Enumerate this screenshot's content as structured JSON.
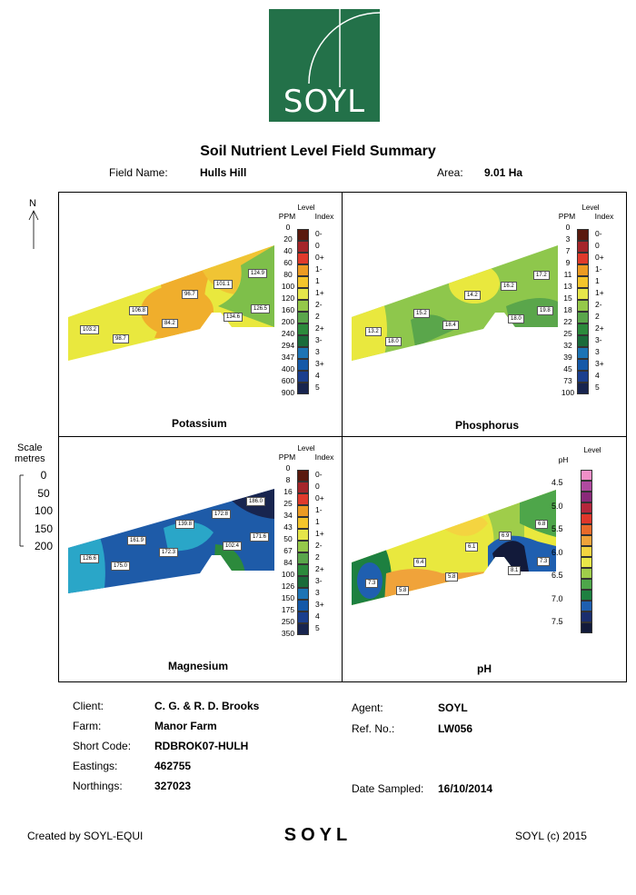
{
  "logo": {
    "text": "SOYL",
    "bg": "#237149"
  },
  "title": "Soil Nutrient Level Field Summary",
  "field": {
    "name_label": "Field Name:",
    "name": "Hulls Hill",
    "area_label": "Area:",
    "area": "9.01 Ha"
  },
  "north": "N",
  "scale": {
    "label1": "Scale",
    "label2": "metres",
    "ticks": [
      "0",
      "50",
      "100",
      "150",
      "200"
    ]
  },
  "panels": {
    "potassium": {
      "name": "Potassium",
      "level_label": "Level",
      "ppm_label": "PPM",
      "index_label": "Index",
      "ppm": [
        "0",
        "20",
        "40",
        "60",
        "80",
        "100",
        "120",
        "160",
        "200",
        "240",
        "294",
        "347",
        "400",
        "600",
        "900"
      ],
      "index": [
        "0-",
        "0",
        "0+",
        "1-",
        "1",
        "1+",
        "2-",
        "2",
        "2+",
        "3-",
        "3",
        "3+",
        "4",
        "5"
      ],
      "values": [
        "103.2",
        "106.8",
        "98.7",
        "84.2",
        "96.7",
        "101.1",
        "124.9",
        "134.6",
        "126.5"
      ]
    },
    "phosphorus": {
      "name": "Phosphorus",
      "level_label": "Level",
      "ppm_label": "PPM",
      "index_label": "Index",
      "ppm": [
        "0",
        "3",
        "7",
        "9",
        "11",
        "13",
        "15",
        "18",
        "22",
        "25",
        "32",
        "39",
        "45",
        "73",
        "100"
      ],
      "index": [
        "0-",
        "0",
        "0+",
        "1-",
        "1",
        "1+",
        "2-",
        "2",
        "2+",
        "3-",
        "3",
        "3+",
        "4",
        "5"
      ],
      "values": [
        "13.2",
        "18.0",
        "15.2",
        "18.4",
        "14.2",
        "16.2",
        "17.2",
        "18.0",
        "19.8"
      ]
    },
    "magnesium": {
      "name": "Magnesium",
      "level_label": "Level",
      "ppm_label": "PPM",
      "index_label": "Index",
      "ppm": [
        "0",
        "8",
        "16",
        "25",
        "34",
        "43",
        "50",
        "67",
        "84",
        "100",
        "126",
        "150",
        "175",
        "250",
        "350"
      ],
      "index": [
        "0-",
        "0",
        "0+",
        "1-",
        "1",
        "1+",
        "2-",
        "2",
        "2+",
        "3-",
        "3",
        "3+",
        "4",
        "5"
      ],
      "values": [
        "126.6",
        "161.9",
        "175.0",
        "172.3",
        "139.8",
        "172.8",
        "186.0",
        "102.4",
        "171.6"
      ]
    },
    "ph": {
      "name": "pH",
      "level_label": "Level",
      "ph_label": "pH",
      "ticks": [
        "4.5",
        "5.0",
        "5.5",
        "6.0",
        "6.5",
        "7.0",
        "7.5"
      ],
      "values": [
        "7.3",
        "5.8",
        "6.4",
        "5.8",
        "6.1",
        "6.9",
        "6.8",
        "8.1",
        "7.3"
      ]
    }
  },
  "info": {
    "client_label": "Client:",
    "client": "C. G. & R. D. Brooks",
    "farm_label": "Farm:",
    "farm": "Manor Farm",
    "short_code_label": "Short Code:",
    "short_code": "RDBROK07-HULH",
    "eastings_label": "Eastings:",
    "eastings": "462755",
    "northings_label": "Northings:",
    "northings": "327023",
    "agent_label": "Agent:",
    "agent": "SOYL",
    "ref_label": "Ref. No.:",
    "ref": "LW056",
    "date_label": "Date Sampled:",
    "date": "16/10/2014"
  },
  "footer": {
    "left": "Created by SOYL-EQUI",
    "middle": "SOYL",
    "right": "SOYL (c) 2015"
  },
  "index_colors": [
    "#5a1a0e",
    "#a5262b",
    "#e03a2c",
    "#ec9b23",
    "#f4c52b",
    "#e6e64a",
    "#95c84a",
    "#5aa64b",
    "#2c8a3c",
    "#1a6b3a",
    "#1d74b5",
    "#1559a8",
    "#1b3f8e",
    "#18254f"
  ],
  "ph_colors": [
    "#f08fc8",
    "#b04aa0",
    "#8a2a7a",
    "#b5263b",
    "#e0372b",
    "#ea6a2a",
    "#f0a33a",
    "#f4d440",
    "#e8e848",
    "#9fcd4a",
    "#4ea64a",
    "#1d8040",
    "#1f5fb0",
    "#1a2e6e",
    "#121a3a"
  ]
}
